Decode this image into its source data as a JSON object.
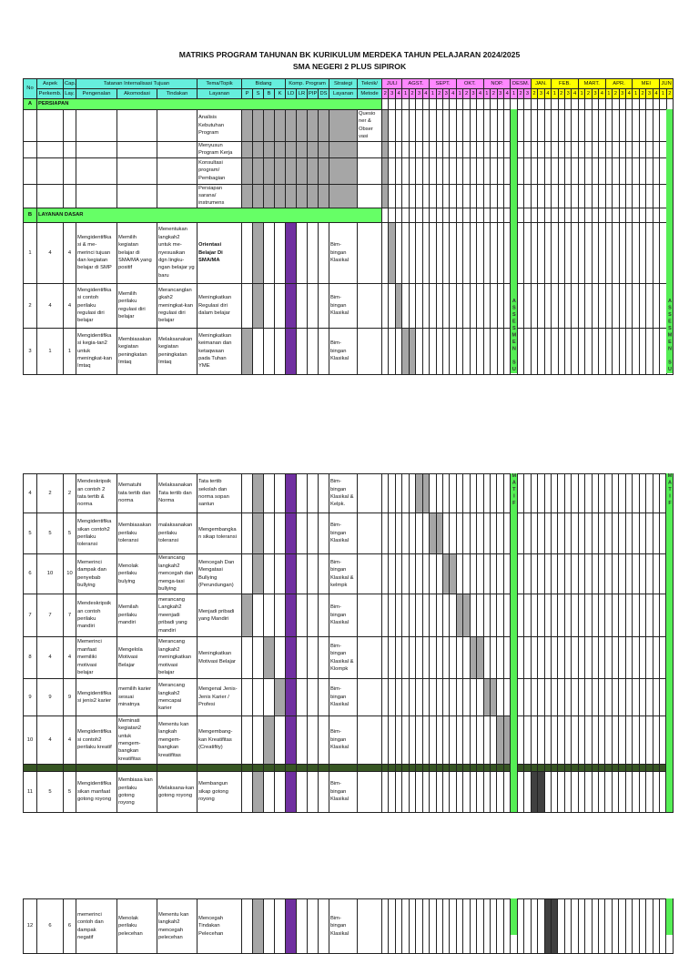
{
  "title": "MATRIKS PROGRAM TAHUNAN BK KURIKULUM MERDEKA TAHUN PELAJARAN 2024/2025",
  "subtitle": "SMA NEGERI 2 PLUS SIPIROK",
  "header": {
    "no": "No",
    "aspek_top": "Aspek",
    "aspek_bottom": "Perkemb.",
    "cap_top": "Cap.",
    "cap_bottom": "Lay.",
    "tatanan": "Tatanan Internalisasi Tujuan",
    "pengenalan": "Pengenalan",
    "akomodasi": "Akomodasi",
    "tindakan": "Tindakan",
    "tema_top": "Tema/Topik",
    "tema_bottom": "Layanan",
    "bidang": "Bidang",
    "bidang_cols": [
      "P",
      "S",
      "B",
      "K"
    ],
    "komp": "Komp. Program",
    "komp_cols": [
      "LD",
      "LR",
      "PIP",
      "DS"
    ],
    "strategi_top": "Strategi",
    "strategi_bottom": "Layanan",
    "teknik_top": "Teknik/",
    "teknik_bottom": "Metode"
  },
  "months": [
    {
      "label": "JULI",
      "weeks": [
        "2",
        "3",
        "4"
      ],
      "sem": 1
    },
    {
      "label": "AGST.",
      "weeks": [
        "1",
        "2",
        "3",
        "4"
      ],
      "sem": 1
    },
    {
      "label": "SEPT.",
      "weeks": [
        "1",
        "2",
        "3",
        "4"
      ],
      "sem": 1
    },
    {
      "label": "OKT.",
      "weeks": [
        "1",
        "2",
        "3",
        "4"
      ],
      "sem": 1
    },
    {
      "label": "NOP.",
      "weeks": [
        "1",
        "2",
        "3",
        "4"
      ],
      "sem": 1
    },
    {
      "label": "DESM.",
      "weeks": [
        "1",
        "2",
        "3"
      ],
      "sem": 1
    },
    {
      "label": "JAN.",
      "weeks": [
        "2",
        "3",
        "4"
      ],
      "sem": 2
    },
    {
      "label": "FEB.",
      "weeks": [
        "1",
        "2",
        "3",
        "4"
      ],
      "sem": 2
    },
    {
      "label": "MART.",
      "weeks": [
        "1",
        "2",
        "3",
        "4"
      ],
      "sem": 2
    },
    {
      "label": "APR.",
      "weeks": [
        "1",
        "2",
        "3",
        "4"
      ],
      "sem": 2
    },
    {
      "label": "MEI",
      "weeks": [
        "1",
        "2",
        "3",
        "4"
      ],
      "sem": 2
    },
    {
      "label": "JUN",
      "weeks": [
        "1",
        "2"
      ],
      "sem": 2
    }
  ],
  "colors": {
    "section": "#66ff66",
    "bidang_shade": "#a6a6a6",
    "ld": "#7030a0",
    "week_light": "#a6a6a6",
    "week_dark": "#404040",
    "assessment": "#55ee55",
    "separator": "#375623"
  },
  "section_a": {
    "letter": "A",
    "title": "PERSIAPAN"
  },
  "persiapan": [
    {
      "tema": "Analisis\nKebutuhan\nProgram",
      "metode": "Quesio\nner &\nObser\nvasi"
    },
    {
      "tema": "Menyusun\nProgram Kerja",
      "metode": ""
    },
    {
      "tema": "Konsultasi\nprogram/\nPembagian",
      "metode": ""
    },
    {
      "tema": "Persiapan\nsarana/\ninstrumens",
      "metode": ""
    }
  ],
  "persiapan_weeks": [
    0
  ],
  "section_b": {
    "letter": "B",
    "title": "LAYANAN DASAR"
  },
  "rows": [
    {
      "no": "1",
      "aspek": "4",
      "cap": "4",
      "pengenalan": "Mengidentifika\nsi & me-\nmerinci  tujuan\ndan kegiatan\nbelajar di SMP",
      "akomodasi": "Memilih\nkegiatan\nbelajar di\nSMA/MA yang\npositif",
      "tindakan": "Menentukan\nlangkah2\nuntuk me-\nnyesuaikan\ndgn lingku-\nngan belajar yg\nbaru",
      "tema": "Orientasi\nBelajar Di\nSMA/MA",
      "tema_bold": true,
      "bidang": "S",
      "komp": "LD",
      "strategi": "Bim-\nbingan\nKlasikal",
      "weeks": [
        1
      ],
      "shade": "light"
    },
    {
      "no": "2",
      "aspek": "4",
      "cap": "4",
      "pengenalan": "Mengidentifika\nsi contoh\nperilaku\nregulasi diri\nbelajar",
      "akomodasi": "Memilih\nperilaku\nregulasi diri\nbelajar",
      "tindakan": "Merancanglan\ngkah2\nmeningkat-kan\nregulasi diri\nbelajar",
      "tema": "Meningkatkan\nRegulasi diri\ndalam belajar",
      "bidang": "S",
      "komp": "LD",
      "strategi": "Bim-\nbingan\nKlasikal",
      "weeks": [
        2
      ],
      "shade": "light"
    },
    {
      "no": "3",
      "aspek": "1",
      "cap": "1",
      "pengenalan": "Mengidentifika\nsi kegia-tan2\nuntuk\nmeningkat-kan\nImtaq",
      "akomodasi": "Membiasakan\nkegiatan\npeningkatan\nImtaq",
      "tindakan": "Melaksanakan\nkegiatan\npeningkatan\nImtaq",
      "tema": "Meningkatkan\nkeimanan dan\nketaqwaan\npada Tuhan\nYME",
      "bidang": "P",
      "komp": "LD",
      "strategi": "Bim-\nbingan\nKlasikal",
      "weeks": [
        3,
        4
      ],
      "shade": "light"
    },
    {
      "no": "4",
      "aspek": "2",
      "cap": "2",
      "pengenalan": "Mendeskripsik\nan contoh 2\ntata tertib &\nnorma",
      "akomodasi": "Mematuhi\ntata tertib dan\nnorma",
      "tindakan": "Melaksanakan\nTata tertib dan\nNorma",
      "tema": "Tata tertib\nsekolah dan\nnorma sopan\nsantun",
      "bidang": "S",
      "komp": "LD",
      "strategi": "Bim-\nbingan\nKlasikal  &\nKelpk.",
      "weeks": [
        5,
        6
      ],
      "shade": "light"
    },
    {
      "no": "5",
      "aspek": "5",
      "cap": "5",
      "pengenalan": "Mengidentifika\nsikan contoh2\nperilaku\ntoleransi",
      "akomodasi": "Membiasakan\nperilaku\ntoleransi",
      "tindakan": "malaksanakan\nperilaku\ntoleransi",
      "tema": "Mengembangka\nn sikap toleransi",
      "bidang": "S",
      "komp": "LD",
      "strategi": "Bim-\nbingan\nKlasikal",
      "weeks": [
        7,
        8
      ],
      "shade": "light"
    },
    {
      "no": "6",
      "aspek": "10",
      "cap": "10",
      "pengenalan": "Memerinci\ndampak dan\npenyebab\nbullying",
      "akomodasi": "Menolak\nperilaku\nbulying",
      "tindakan": "Merancang\nlangkah2\nmencegah dan\nmenga-tasi\nbullying",
      "tema": "Mencegah Dan\nMengatasi\nBullying\n(Perundungan)",
      "bidang": "S",
      "komp": "LD",
      "strategi": "Bim-\nbingan\nKlasikal  &\nkelmpk",
      "weeks": [
        9,
        10
      ],
      "shade": "light"
    },
    {
      "no": "7",
      "aspek": "7",
      "cap": "7",
      "pengenalan": "Mendeskripsik\nan contoh\nperilaku\nmandiri",
      "akomodasi": "Memilah\nperilaku\nmandiri",
      "tindakan": "merancang\nLangkah2\nmeenjadi\npribadi yang\nmandiri",
      "tema": "Menjadi pribadi\nyang Mandiri",
      "bidang": "P",
      "komp": "LD",
      "strategi": "Bim-\nbingan\nKlasikal",
      "weeks": [
        11,
        12
      ],
      "shade": "light"
    },
    {
      "no": "8",
      "aspek": "4",
      "cap": "4",
      "pengenalan": "Memerinci\nmanfaat\nmemiliki\nmotivasi\nbelajar",
      "akomodasi": "Mengelola\nMotivasi\nBelajar",
      "tindakan": "Merancang\nlangkah2\nmeningkatkan\nmotivasi\nbelajar",
      "tema": "Meningkatkan\nMotivasi Belajar",
      "bidang": "B",
      "komp": "LD",
      "strategi": "Bim-\nbingan\nKlasikal  &\nKlompk",
      "weeks": [
        13,
        14
      ],
      "shade": "light"
    },
    {
      "no": "9",
      "aspek": "9",
      "cap": "9",
      "pengenalan": "Mengidentifika\nsi jenis2 karier",
      "akomodasi": "memilih karier\nsesuai\nminatnya",
      "tindakan": "Merancang\nlangkah2\nmencapai\nkarier",
      "tema": "Mengenal Jenis-\nJenis Karier /\nProfesi",
      "bidang": "K",
      "komp": "LD",
      "strategi": "Bim-\nbingan\nKlasikal",
      "weeks": [
        15,
        16
      ],
      "shade": "light"
    },
    {
      "no": "10",
      "aspek": "4",
      "cap": "4",
      "pengenalan": "Mengidentifika\nsi contoh2\nperilaku kreatif",
      "akomodasi": "Meminati\nkegiatan2\nuntuk\nmengem-\nbangkan\nkreatifitas",
      "tindakan": "Menentu kan\nlangkah\nmengem-\nbangkan\nkreatifitas",
      "tema": "Mengembang-\nkan Kreatifitas\n(Creatifity)",
      "bidang": "B",
      "komp": "LD",
      "strategi": "Bim-\nbingan\nKlasikal",
      "weeks": [
        17,
        18
      ],
      "shade": "light"
    },
    {
      "no": "11",
      "aspek": "5",
      "cap": "5",
      "pengenalan": "Mengidentifika\nsikan manfaat\ngotong royong",
      "akomodasi": "Membiasa kan\nperilaku\ngotong\nroyong",
      "tindakan": "Melaksana-kan\ngotong royong",
      "tema": "Membangun\nsikap gotong\nroyong",
      "bidang": "S",
      "komp": "LD",
      "strategi": "Bim-\nbingan\nKlasikal",
      "weeks": [
        22,
        23
      ],
      "shade": "dark"
    },
    {
      "no": "12",
      "aspek": "6",
      "cap": "6",
      "pengenalan": "memerinci\ncontoh dan\ndampak\nnegatif",
      "akomodasi": "Menolak\nperilaku\npelecehan",
      "tindakan": "Menentu kan\nlangkah2\nmencegah\npelecehan",
      "tema": "Mencegah\nTindakan\nPelecehan",
      "bidang": "S",
      "komp": "LD",
      "strategi": "Bim-\nbingan\nKlasikal",
      "weeks": [
        24,
        25
      ],
      "shade": "dark"
    }
  ],
  "assessment_labels": {
    "part1": "ASSESMEN SU",
    "part2": "MATIF"
  },
  "assessment_weeks": [
    19,
    42
  ]
}
